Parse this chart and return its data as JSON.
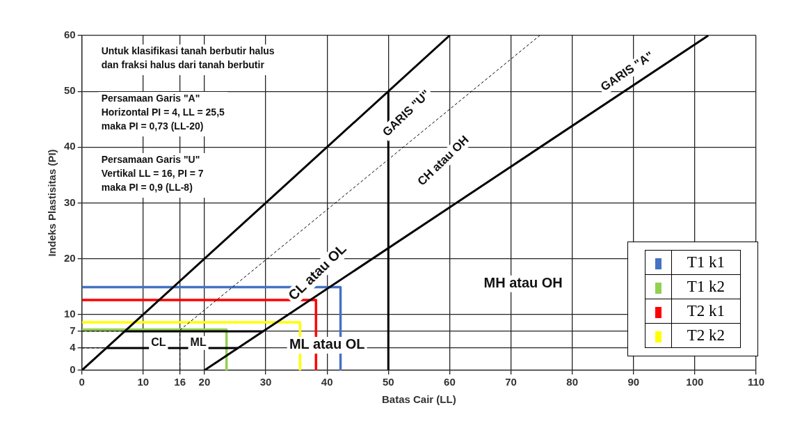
{
  "chart_data": {
    "type": "line",
    "xlabel": "Batas Cair (LL)",
    "ylabel": "Indeks Plastisitas (PI)",
    "xlim": [
      0,
      110
    ],
    "xticks": [
      0,
      10,
      16,
      20,
      30,
      40,
      50,
      60,
      70,
      80,
      90,
      100,
      110
    ],
    "ylim": [
      0,
      60
    ],
    "yticks": [
      0,
      4,
      7,
      10,
      20,
      30,
      40,
      50,
      60
    ],
    "grid": true,
    "legend": "bottom right",
    "marker": "none",
    "line_style": "solid",
    "series": [
      {
        "color": "#000000",
        "x": [
          0,
          60
        ],
        "values": [
          0,
          60
        ]
      },
      {
        "color": "#000000",
        "x": [
          20,
          102.2
        ],
        "values": [
          0,
          60
        ]
      },
      {
        "color": "#000000",
        "x": [
          16,
          74.7
        ],
        "values": [
          7.2,
          60
        ],
        "line_style": "dashed"
      },
      {
        "color": "#000000",
        "x": [
          50,
          50
        ],
        "values": [
          0,
          50
        ]
      },
      {
        "color": "#000000",
        "x": [
          7,
          29.6
        ],
        "values": [
          7,
          7
        ]
      },
      {
        "color": "#000000",
        "x": [
          4,
          25.5
        ],
        "values": [
          4,
          4
        ]
      },
      {
        "color": "#000000",
        "x": [
          0,
          7
        ],
        "values": [
          7,
          7
        ],
        "line_style": "dashed"
      },
      {
        "color": "#000000",
        "x": [
          0,
          4
        ],
        "values": [
          4,
          4
        ],
        "line_style": "dashed"
      },
      {
        "color": "#000000",
        "x": [
          16,
          16
        ],
        "values": [
          0,
          7
        ],
        "line_style": "dashed"
      },
      {
        "name": "T1 k1",
        "color": "#4472c4",
        "x": [
          0,
          42.2,
          42.2
        ],
        "values": [
          14.9,
          14.9,
          0
        ]
      },
      {
        "name": "T1 k2",
        "color": "#92d050",
        "x": [
          0,
          23.6,
          23.6
        ],
        "values": [
          7.3,
          7.3,
          0
        ]
      },
      {
        "name": "T2 k1",
        "color": "#ff0000",
        "x": [
          0,
          38.2,
          38.2
        ],
        "values": [
          12.6,
          12.6,
          0
        ]
      },
      {
        "name": "T2 k2",
        "color": "#ffff00",
        "x": [
          0,
          35.6,
          35.6
        ],
        "values": [
          8.6,
          8.6,
          0
        ]
      }
    ],
    "annotations": [
      "Untuk klasifikasi tanah berbutir halus\ndan fraksi halus dari tanah berbutir",
      "Persamaan Garis \"A\"\nHorizontal PI = 4, LL = 25,5\nmaka PI = 0,73 (LL-20)",
      "Persamaan Garis \"U\"\nVertikal LL = 16, PI = 7\nmaka PI = 0,9 (LL-8)",
      "GARIS \"U\"",
      "CH atau OH",
      "GARIS \"A\"",
      "CL atau OL",
      "MH atau OH",
      "ML atau OL",
      "CL",
      "ML"
    ]
  }
}
